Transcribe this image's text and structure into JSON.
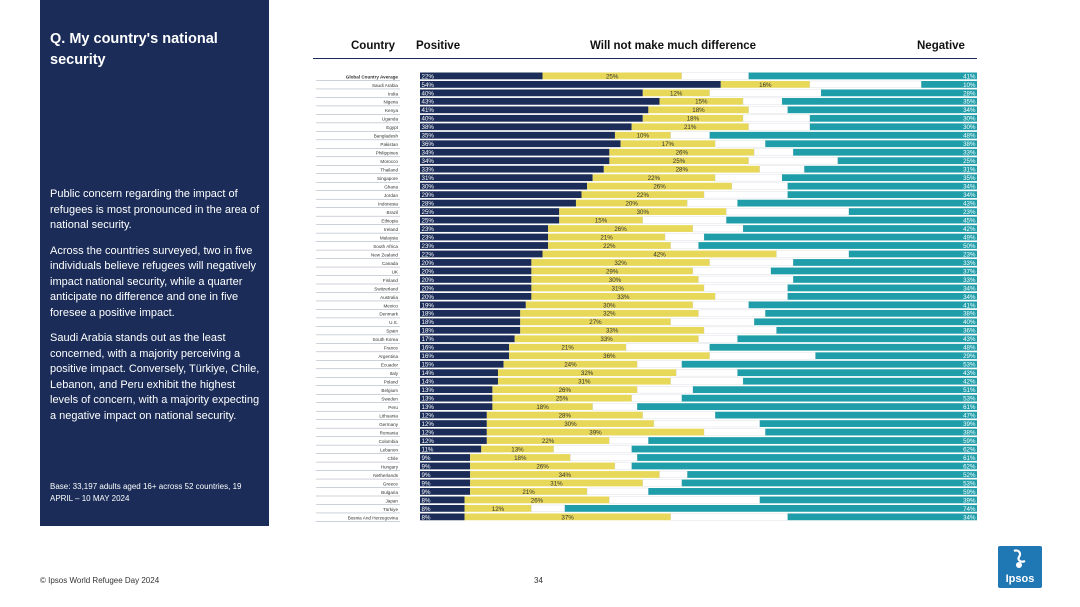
{
  "panel": {
    "title": "Q. My country's national security",
    "paragraphs": [
      "Public concern regarding the impact of refugees is most pronounced in the area of national security.",
      "Across the countries surveyed, two in five individuals believe refugees will negatively impact national security, while a quarter anticipate no difference and one in five foresee a positive impact.",
      "Saudi Arabia stands out as the least concerned, with a majority perceiving a positive impact. Conversely, Türkiye, Chile, Lebanon, and Peru exhibit the highest levels of concern, with a majority expecting a negative impact on national security."
    ],
    "base": "Base: 33,197 adults aged 16+ across 52 countries, 19 APRIL – 10 MAY 2024"
  },
  "headers": {
    "country": "Country",
    "positive": "Positive",
    "neutral": "Will not make much difference",
    "negative": "Negative"
  },
  "colors": {
    "panel": "#1a2c57",
    "positive": "#1a2c57",
    "neutral": "#e8d85a",
    "negative": "#1f9eaa",
    "gap": "#ffffff"
  },
  "footer": {
    "source": "© Ipsos World Refugee Day 2024",
    "page": "34"
  },
  "logo": {
    "text": "Ipsos"
  },
  "chart_data": {
    "type": "bar",
    "orientation": "horizontal-stacked",
    "percent_suffix": "%",
    "categories": [
      "Global Country Average",
      "Saudi Arabia",
      "India",
      "Nigeria",
      "Kenya",
      "Uganda",
      "Egypt",
      "Bangladesh",
      "Pakistan",
      "Philippines",
      "Morocco",
      "Thailand",
      "Singapore",
      "Ghana",
      "Jordan",
      "Indonesia",
      "Brazil",
      "Ethiopia",
      "Ireland",
      "Malaysia",
      "South Africa",
      "New Zealand",
      "Canada",
      "UK",
      "Finland",
      "Switzerland",
      "Australia",
      "Mexico",
      "Denmark",
      "U.S.",
      "Spain",
      "South Korea",
      "France",
      "Argentina",
      "Ecuador",
      "Italy",
      "Poland",
      "Belgium",
      "Sweden",
      "Peru",
      "Lithuania",
      "Germany",
      "Romania",
      "Colombia",
      "Lebanon",
      "Chile",
      "Hungary",
      "Netherlands",
      "Greece",
      "Bulgaria",
      "Japan",
      "Türkiye",
      "Bosnia And Herzegovina"
    ],
    "series": [
      {
        "name": "Positive",
        "values": [
          22,
          54,
          40,
          43,
          41,
          40,
          38,
          35,
          36,
          34,
          34,
          33,
          31,
          30,
          29,
          28,
          25,
          25,
          23,
          23,
          23,
          22,
          20,
          20,
          20,
          20,
          20,
          19,
          18,
          18,
          18,
          17,
          16,
          16,
          15,
          14,
          14,
          13,
          13,
          13,
          12,
          12,
          12,
          12,
          11,
          9,
          9,
          9,
          9,
          9,
          8,
          8,
          8
        ]
      },
      {
        "name": "Will not make much difference",
        "values": [
          25,
          16,
          12,
          15,
          18,
          18,
          21,
          10,
          17,
          26,
          25,
          28,
          22,
          26,
          22,
          20,
          30,
          15,
          26,
          21,
          22,
          42,
          32,
          29,
          30,
          31,
          33,
          30,
          32,
          27,
          33,
          33,
          21,
          36,
          24,
          32,
          31,
          26,
          25,
          18,
          28,
          30,
          39,
          22,
          13,
          18,
          26,
          34,
          31,
          21,
          26,
          12,
          37
        ]
      },
      {
        "name": "Negative",
        "values": [
          41,
          10,
          28,
          35,
          34,
          30,
          30,
          48,
          38,
          33,
          25,
          31,
          35,
          34,
          34,
          43,
          23,
          45,
          42,
          49,
          50,
          23,
          33,
          37,
          33,
          34,
          34,
          41,
          38,
          40,
          36,
          43,
          48,
          29,
          53,
          43,
          42,
          51,
          53,
          61,
          47,
          39,
          38,
          59,
          62,
          61,
          62,
          52,
          53,
          59,
          39,
          74,
          34
        ]
      }
    ]
  }
}
